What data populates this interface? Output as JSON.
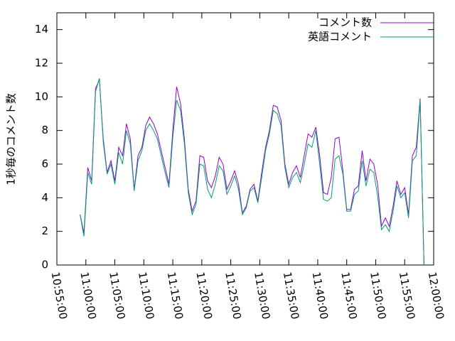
{
  "chart_data": {
    "type": "line",
    "y_label": "1秒毎のコメント数",
    "x": [
      "10:59:00",
      "10:59:40",
      "11:00:20",
      "11:01:00",
      "11:01:40",
      "11:02:20",
      "11:03:00",
      "11:03:40",
      "11:04:20",
      "11:05:00",
      "11:05:40",
      "11:06:20",
      "11:07:00",
      "11:07:40",
      "11:08:20",
      "11:09:00",
      "11:09:40",
      "11:10:20",
      "11:11:00",
      "11:11:40",
      "11:12:20",
      "11:13:00",
      "11:13:40",
      "11:14:20",
      "11:15:00",
      "11:15:40",
      "11:16:20",
      "11:17:00",
      "11:17:40",
      "11:18:20",
      "11:19:00",
      "11:19:40",
      "11:20:20",
      "11:21:00",
      "11:21:40",
      "11:22:20",
      "11:23:00",
      "11:23:40",
      "11:24:20",
      "11:25:00",
      "11:25:40",
      "11:26:20",
      "11:27:00",
      "11:27:40",
      "11:28:20",
      "11:29:00",
      "11:29:40",
      "11:30:20",
      "11:31:00",
      "11:31:40",
      "11:32:20",
      "11:33:00",
      "11:33:40",
      "11:34:20",
      "11:35:00",
      "11:35:40",
      "11:36:20",
      "11:37:00",
      "11:37:40",
      "11:38:20",
      "11:39:00",
      "11:39:40",
      "11:40:20",
      "11:41:00",
      "11:41:40",
      "11:42:20",
      "11:43:00",
      "11:43:40",
      "11:44:20",
      "11:45:00",
      "11:45:40",
      "11:46:20",
      "11:47:00",
      "11:47:40",
      "11:48:20",
      "11:49:00",
      "11:49:40",
      "11:50:20",
      "11:51:00",
      "11:51:40",
      "11:52:20",
      "11:53:00",
      "11:53:40",
      "11:54:20",
      "11:55:00",
      "11:55:40",
      "11:56:20",
      "11:57:00",
      "11:57:40",
      "11:58:20"
    ],
    "series": [
      {
        "name": "コメント数",
        "color": "#9400d3",
        "values": [
          3.0,
          1.9,
          5.8,
          5.0,
          10.5,
          11.0,
          7.5,
          5.5,
          6.2,
          5.0,
          7.0,
          6.5,
          8.4,
          7.5,
          4.5,
          6.5,
          7.0,
          8.3,
          8.8,
          8.4,
          7.8,
          6.8,
          5.8,
          4.8,
          8.0,
          10.6,
          9.6,
          7.5,
          4.5,
          3.2,
          3.8,
          6.5,
          6.4,
          5.0,
          4.6,
          5.3,
          6.4,
          6.0,
          4.5,
          5.0,
          5.6,
          4.8,
          3.1,
          3.5,
          4.5,
          4.8,
          3.8,
          5.5,
          7.0,
          8.0,
          9.5,
          9.4,
          8.6,
          6.0,
          4.8,
          5.5,
          5.9,
          5.2,
          6.5,
          7.8,
          7.6,
          8.2,
          6.5,
          4.3,
          4.2,
          5.2,
          7.5,
          7.6,
          5.6,
          3.3,
          3.3,
          4.5,
          4.7,
          6.8,
          5.0,
          6.3,
          6.0,
          4.8,
          2.3,
          2.8,
          2.3,
          3.5,
          5.0,
          4.2,
          4.6,
          3.0,
          6.5,
          7.0,
          9.9,
          0
        ]
      },
      {
        "name": "英語コメント",
        "color": "#009e73",
        "values": [
          3.0,
          1.7,
          5.5,
          4.8,
          10.3,
          11.1,
          7.3,
          5.4,
          6.0,
          4.8,
          6.7,
          6.0,
          8.0,
          7.2,
          4.4,
          6.2,
          6.8,
          8.0,
          8.4,
          8.0,
          7.5,
          6.5,
          5.5,
          4.6,
          7.6,
          9.8,
          9.2,
          7.2,
          4.3,
          3.0,
          3.6,
          6.0,
          5.9,
          4.5,
          4.0,
          4.8,
          5.9,
          5.6,
          4.2,
          4.7,
          5.3,
          4.5,
          3.0,
          3.4,
          4.4,
          4.6,
          3.7,
          5.2,
          6.8,
          7.8,
          9.2,
          9.0,
          8.3,
          5.8,
          4.6,
          5.2,
          5.5,
          4.9,
          6.0,
          7.2,
          7.0,
          8.0,
          6.0,
          3.9,
          3.8,
          4.0,
          6.3,
          6.5,
          5.4,
          3.2,
          3.2,
          4.2,
          4.4,
          6.2,
          4.7,
          5.7,
          5.5,
          4.1,
          2.1,
          2.4,
          2.0,
          3.2,
          4.7,
          4.0,
          4.3,
          2.8,
          6.2,
          6.5,
          9.8,
          0
        ]
      }
    ],
    "xlim": [
      "10:55:00",
      "12:00:00"
    ],
    "xticks": [
      "10:55:00",
      "11:00:00",
      "11:05:00",
      "11:10:00",
      "11:15:00",
      "11:20:00",
      "11:25:00",
      "11:30:00",
      "11:35:00",
      "11:40:00",
      "11:45:00",
      "11:50:00",
      "11:55:00",
      "12:00:00"
    ],
    "ylim": [
      0,
      15
    ],
    "yticks": [
      0,
      2,
      4,
      6,
      8,
      10,
      12,
      14
    ],
    "legend": "top-right",
    "grid": false
  }
}
